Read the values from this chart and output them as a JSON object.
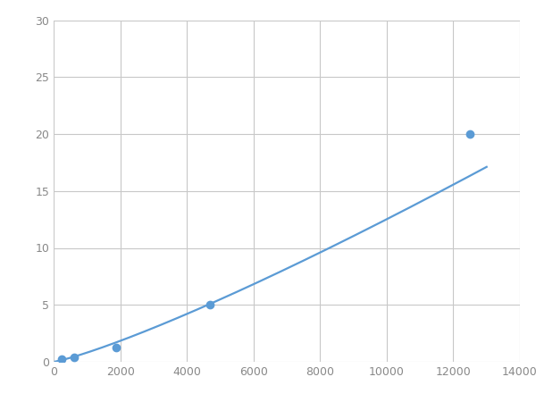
{
  "x_data": [
    250,
    625,
    1875,
    4688,
    12500
  ],
  "y_data": [
    0.2,
    0.4,
    1.25,
    5.0,
    20.0
  ],
  "line_color": "#5b9bd5",
  "marker_color": "#5b9bd5",
  "marker_size": 6,
  "linewidth": 1.6,
  "xlim": [
    0,
    14000
  ],
  "ylim": [
    0,
    30
  ],
  "xticks": [
    0,
    2000,
    4000,
    6000,
    8000,
    10000,
    12000,
    14000
  ],
  "yticks": [
    0,
    5,
    10,
    15,
    20,
    25,
    30
  ],
  "grid_color": "#c8c8c8",
  "background_color": "#ffffff",
  "tick_color": "#888888",
  "fig_width": 6.0,
  "fig_height": 4.5,
  "dpi": 100
}
